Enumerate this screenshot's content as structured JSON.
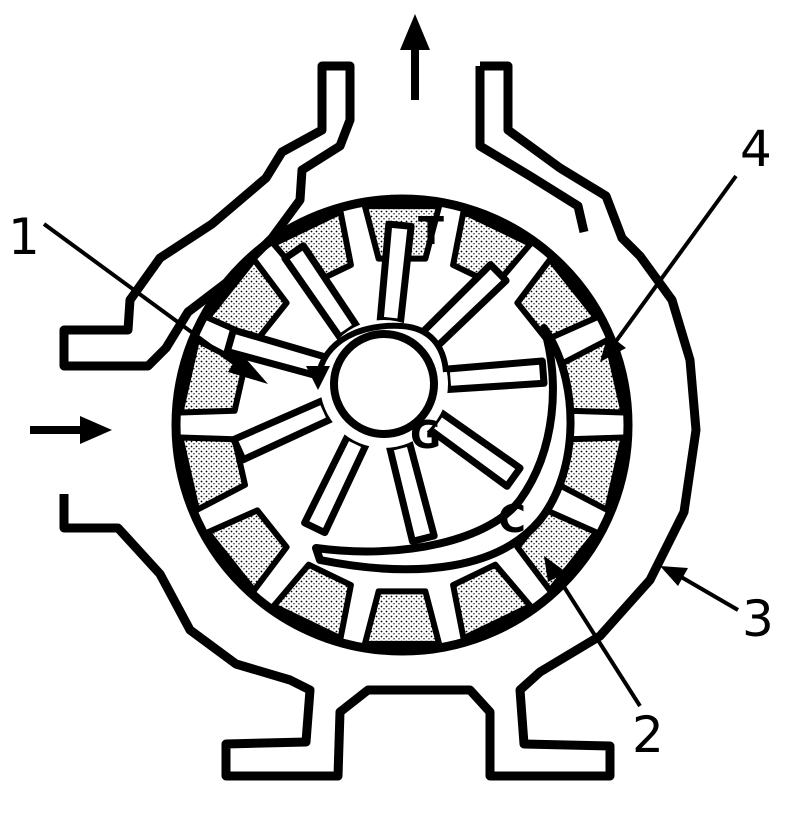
{
  "diagram": {
    "labels": {
      "one": "1",
      "two": "2",
      "three": "3",
      "four": "4",
      "tooth": "T",
      "gear": "G",
      "crescent": "C"
    },
    "colors": {
      "ink": "#000000",
      "paper": "#ffffff",
      "stipple": "#b9b9b9"
    }
  }
}
